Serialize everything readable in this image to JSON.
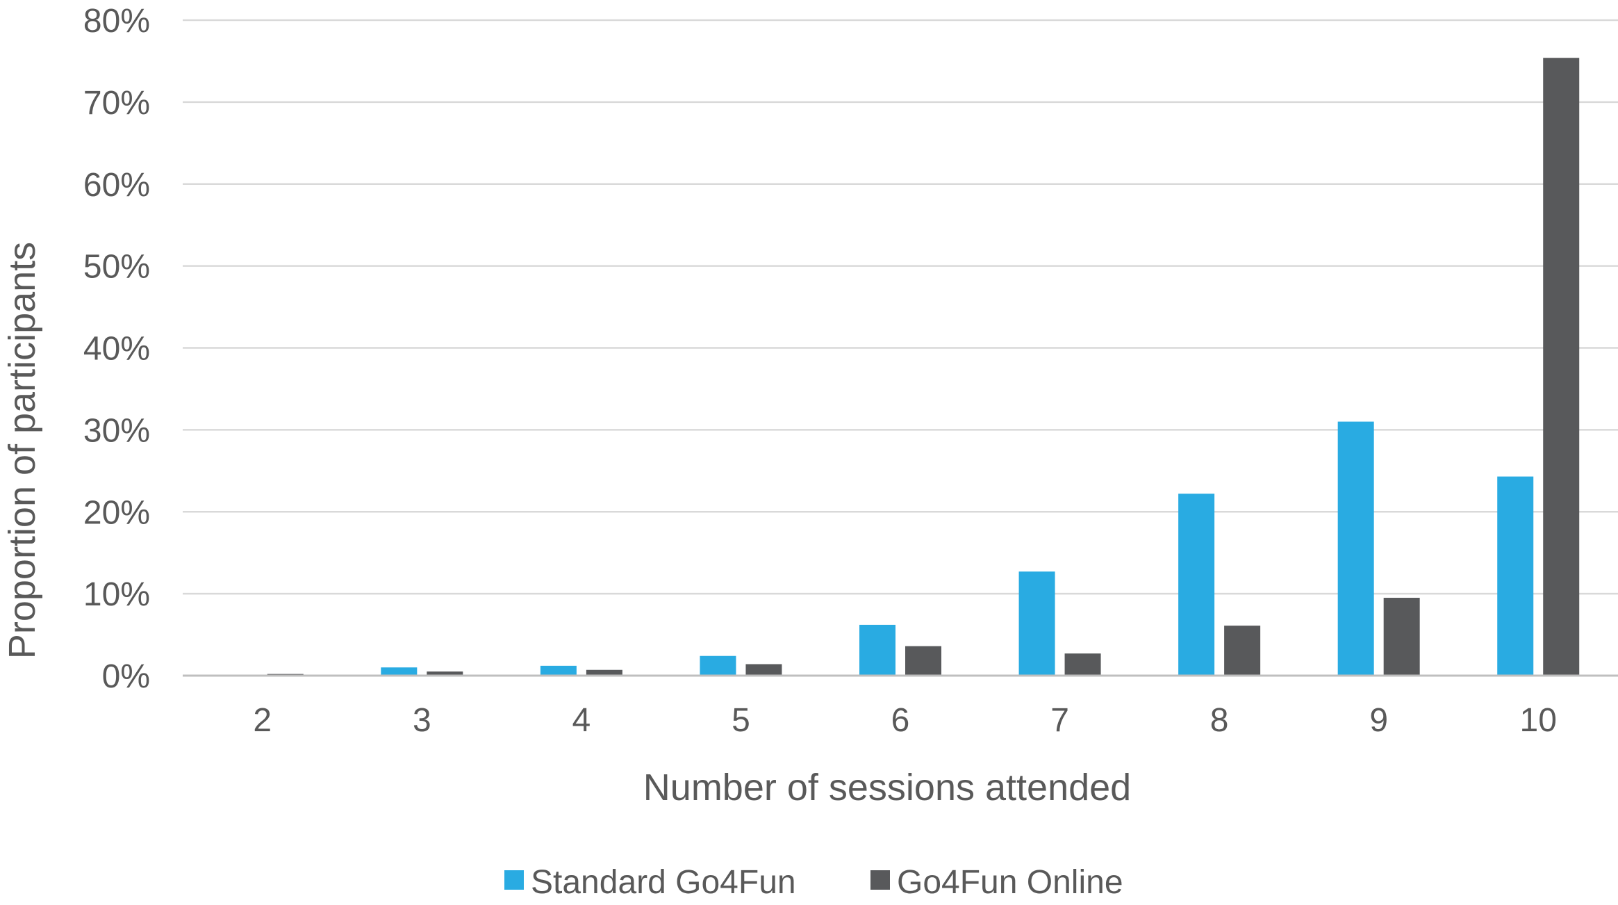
{
  "chart_data": {
    "type": "bar",
    "title": "",
    "xlabel": "Number of sessions attended",
    "ylabel": "Proportion of participants",
    "categories": [
      "2",
      "3",
      "4",
      "5",
      "6",
      "7",
      "8",
      "9",
      "10"
    ],
    "series": [
      {
        "name": "Standard Go4Fun",
        "color": "#29abe2",
        "values": [
          0.0,
          1.0,
          1.2,
          2.4,
          6.2,
          12.7,
          22.2,
          31.0,
          24.3
        ]
      },
      {
        "name": "Go4Fun Online",
        "color": "#58595b",
        "values": [
          0.2,
          0.5,
          0.7,
          1.4,
          3.6,
          2.7,
          6.1,
          9.5,
          75.4
        ]
      }
    ],
    "yticks": [
      "0%",
      "10%",
      "20%",
      "30%",
      "40%",
      "50%",
      "60%",
      "70%",
      "80%"
    ],
    "ylim": [
      0,
      80
    ],
    "grid": true,
    "legend_position": "bottom-center"
  }
}
